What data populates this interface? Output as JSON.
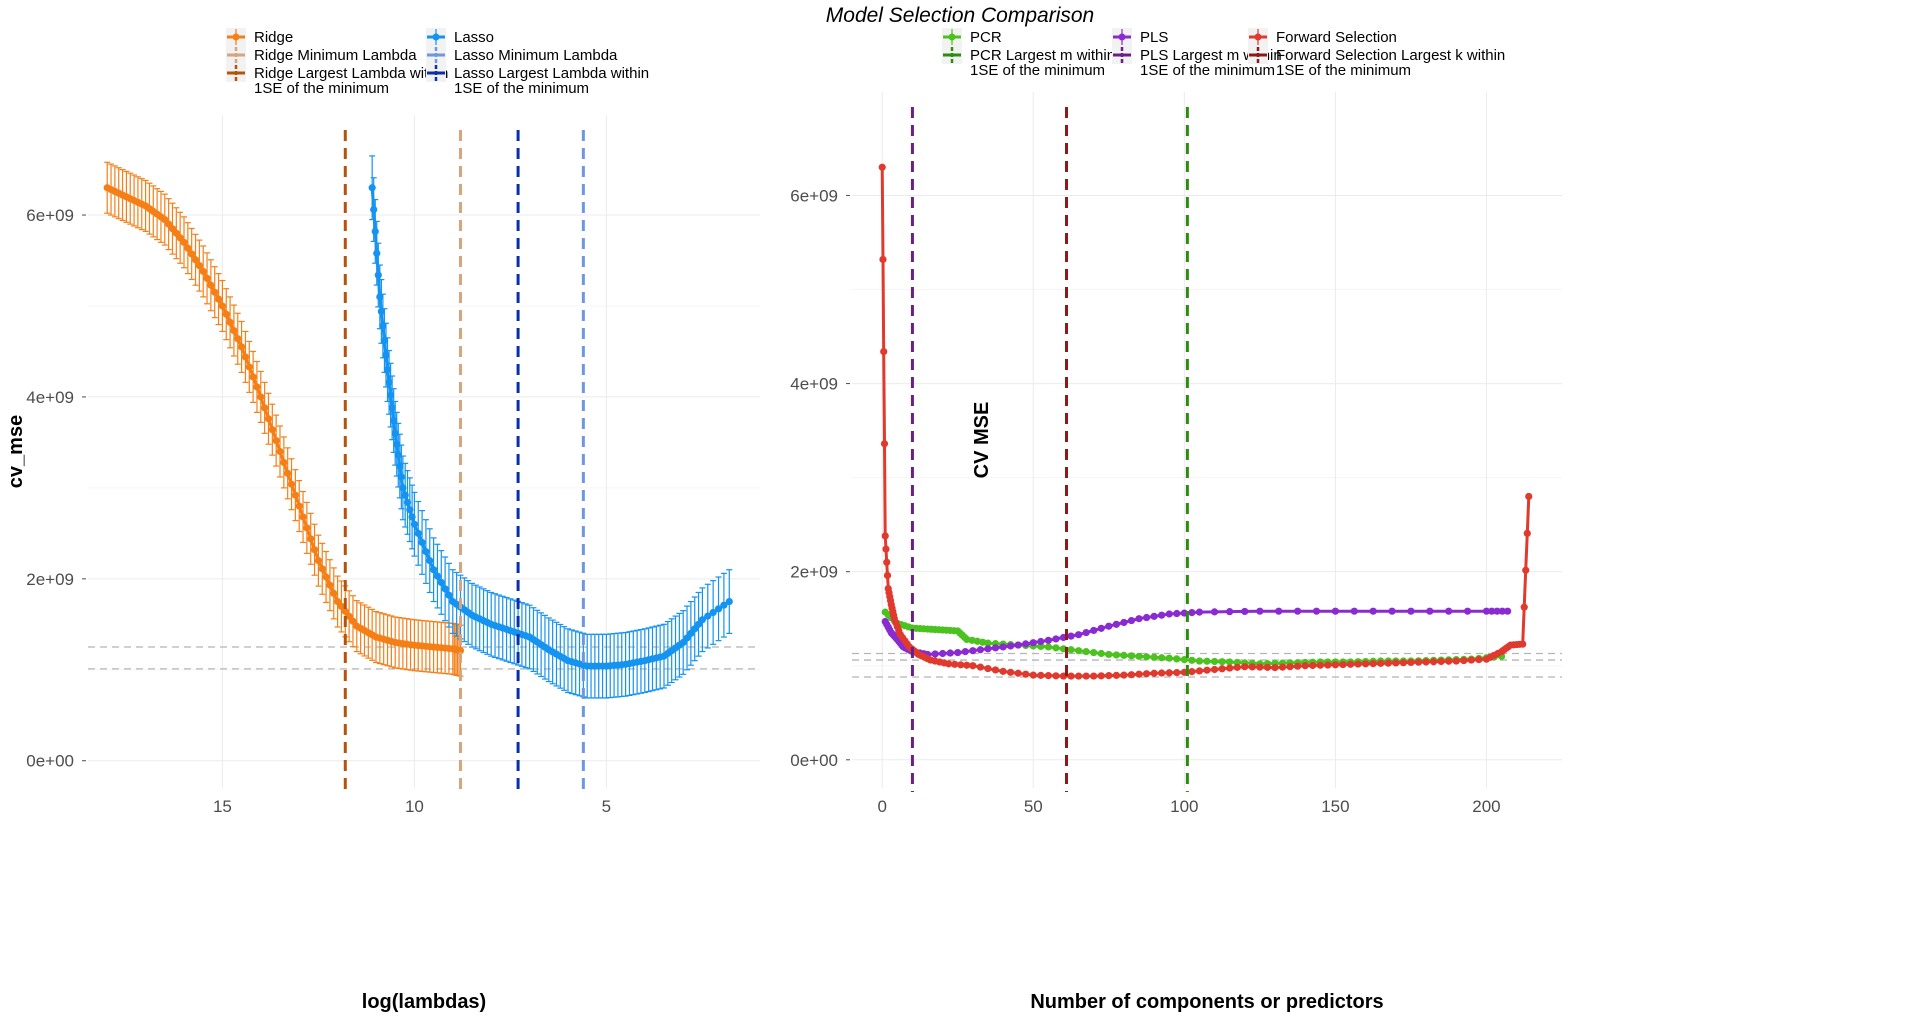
{
  "title": "Model Selection Comparison",
  "chart_data": [
    {
      "type": "line",
      "xlabel": "log(lambdas)",
      "ylabel": "cv_mse",
      "x_reversed": true,
      "xlim": [
        18.5,
        1.0
      ],
      "ylim": [
        -300000000.0,
        7100000000.0
      ],
      "x_ticks": [
        15,
        10,
        5
      ],
      "x_tick_labels": [
        "15",
        "10",
        "5"
      ],
      "y_ticks": [
        0,
        2000000000,
        4000000000,
        6000000000
      ],
      "y_tick_labels": [
        "0e+00",
        "2e+09",
        "4e+09",
        "6e+09"
      ],
      "grid": true,
      "legend_position": "top",
      "legend": [
        {
          "label": "Ridge",
          "kind": "series",
          "color": "#f57f17"
        },
        {
          "label": "Ridge Minimum Lambda",
          "kind": "vline",
          "color": "#d6a47e"
        },
        {
          "label": "Ridge Largest Lambda within\n1SE of the minimum",
          "kind": "vline",
          "color": "#b45309"
        },
        {
          "label": "Lasso",
          "kind": "series",
          "color": "#1493f0"
        },
        {
          "label": "Lasso Minimum Lambda",
          "kind": "vline",
          "color": "#6f97de"
        },
        {
          "label": "Lasso Largest Lambda within\n1SE of the minimum",
          "kind": "vline",
          "color": "#0b2fa8"
        }
      ],
      "series": [
        {
          "name": "Ridge",
          "color": "#f57f17",
          "errorbar_se": 280000000.0,
          "points": [
            [
              18.0,
              6300000000.0
            ],
            [
              17.5,
              6200000000.0
            ],
            [
              17.0,
              6100000000.0
            ],
            [
              16.5,
              5950000000.0
            ],
            [
              16.0,
              5700000000.0
            ],
            [
              15.5,
              5380000000.0
            ],
            [
              15.0,
              5000000000.0
            ],
            [
              14.5,
              4550000000.0
            ],
            [
              14.0,
              4000000000.0
            ],
            [
              13.5,
              3400000000.0
            ],
            [
              13.0,
              2800000000.0
            ],
            [
              12.5,
              2200000000.0
            ],
            [
              12.0,
              1750000000.0
            ],
            [
              11.5,
              1480000000.0
            ],
            [
              11.0,
              1360000000.0
            ],
            [
              10.5,
              1300000000.0
            ],
            [
              10.0,
              1270000000.0
            ],
            [
              9.5,
              1250000000.0
            ],
            [
              9.0,
              1230000000.0
            ],
            [
              8.8,
              1210000000.0
            ]
          ]
        },
        {
          "name": "Lasso",
          "color": "#1493f0",
          "errorbar_se": 350000000.0,
          "points": [
            [
              11.1,
              6300000000.0
            ],
            [
              10.9,
              5100000000.0
            ],
            [
              10.7,
              4300000000.0
            ],
            [
              10.5,
              3600000000.0
            ],
            [
              10.3,
              3000000000.0
            ],
            [
              10.0,
              2600000000.0
            ],
            [
              9.5,
              2100000000.0
            ],
            [
              9.0,
              1750000000.0
            ],
            [
              8.5,
              1600000000.0
            ],
            [
              8.0,
              1500000000.0
            ],
            [
              7.5,
              1430000000.0
            ],
            [
              7.0,
              1360000000.0
            ],
            [
              6.5,
              1220000000.0
            ],
            [
              6.0,
              1100000000.0
            ],
            [
              5.5,
              1040000000.0
            ],
            [
              5.0,
              1040000000.0
            ],
            [
              4.5,
              1060000000.0
            ],
            [
              4.0,
              1100000000.0
            ],
            [
              3.5,
              1150000000.0
            ],
            [
              3.0,
              1300000000.0
            ],
            [
              2.5,
              1550000000.0
            ],
            [
              1.8,
              1750000000.0
            ]
          ]
        }
      ],
      "vlines": [
        {
          "name": "Ridge Largest Lambda within 1SE of the minimum",
          "x": 11.8,
          "color": "#b45309"
        },
        {
          "name": "Ridge Minimum Lambda",
          "x": 8.8,
          "color": "#d6a47e"
        },
        {
          "name": "Lasso Largest Lambda within 1SE of the minimum",
          "x": 7.3,
          "color": "#0b2fa8"
        },
        {
          "name": "Lasso Minimum Lambda",
          "x": 5.6,
          "color": "#6f97de"
        }
      ],
      "hlines": [
        1250000000.0,
        1010000000.0
      ]
    },
    {
      "type": "line",
      "xlabel": "Number of components or predictors",
      "ylabel": "CV MSE",
      "xlim": [
        -10,
        225
      ],
      "ylim": [
        -300000000.0,
        7100000000.0
      ],
      "x_ticks": [
        0,
        50,
        100,
        150,
        200
      ],
      "x_tick_labels": [
        "0",
        "50",
        "100",
        "150",
        "200"
      ],
      "y_ticks": [
        0,
        2000000000,
        4000000000,
        6000000000
      ],
      "y_tick_labels": [
        "0e+00",
        "2e+09",
        "4e+09",
        "6e+09"
      ],
      "grid": true,
      "legend_position": "top",
      "legend": [
        {
          "label": "PCR",
          "kind": "series",
          "color": "#4cc21f"
        },
        {
          "label": "PCR Largest m within\n1SE of the minimum",
          "kind": "vline",
          "color": "#2e8b0f"
        },
        {
          "label": "PLS",
          "kind": "series",
          "color": "#8a2bd2"
        },
        {
          "label": "PLS Largest m within\n1SE of the minimum",
          "kind": "vline",
          "color": "#6a1e8a"
        },
        {
          "label": "Forward Selection",
          "kind": "series",
          "color": "#e03a2e"
        },
        {
          "label": "Forward Selection Largest k within\n1SE of the minimum",
          "kind": "vline",
          "color": "#8b1a1a"
        }
      ],
      "series": [
        {
          "name": "PCR",
          "color": "#4cc21f",
          "points": [
            [
              1,
              1570000000.0
            ],
            [
              5,
              1450000000.0
            ],
            [
              10,
              1400000000.0
            ],
            [
              15,
              1390000000.0
            ],
            [
              20,
              1380000000.0
            ],
            [
              25,
              1370000000.0
            ],
            [
              28,
              1280000000.0
            ],
            [
              35,
              1240000000.0
            ],
            [
              45,
              1220000000.0
            ],
            [
              55,
              1200000000.0
            ],
            [
              65,
              1160000000.0
            ],
            [
              75,
              1120000000.0
            ],
            [
              85,
              1100000000.0
            ],
            [
              95,
              1080000000.0
            ],
            [
              105,
              1050000000.0
            ],
            [
              115,
              1040000000.0
            ],
            [
              125,
              1020000000.0
            ],
            [
              135,
              1030000000.0
            ],
            [
              145,
              1040000000.0
            ],
            [
              155,
              1040000000.0
            ],
            [
              165,
              1050000000.0
            ],
            [
              175,
              1050000000.0
            ],
            [
              185,
              1060000000.0
            ],
            [
              195,
              1070000000.0
            ],
            [
              205,
              1100000000.0
            ]
          ]
        },
        {
          "name": "PLS",
          "color": "#8a2bd2",
          "points": [
            [
              1,
              1470000000.0
            ],
            [
              3,
              1350000000.0
            ],
            [
              5,
              1280000000.0
            ],
            [
              7,
              1200000000.0
            ],
            [
              10,
              1150000000.0
            ],
            [
              15,
              1120000000.0
            ],
            [
              25,
              1140000000.0
            ],
            [
              35,
              1180000000.0
            ],
            [
              45,
              1220000000.0
            ],
            [
              55,
              1270000000.0
            ],
            [
              65,
              1330000000.0
            ],
            [
              75,
              1420000000.0
            ],
            [
              85,
              1500000000.0
            ],
            [
              95,
              1550000000.0
            ],
            [
              105,
              1570000000.0
            ],
            [
              125,
              1580000000.0
            ],
            [
              150,
              1580000000.0
            ],
            [
              175,
              1580000000.0
            ],
            [
              200,
              1580000000.0
            ],
            [
              207,
              1580000000.0
            ]
          ]
        },
        {
          "name": "Forward Selection",
          "color": "#e03a2e",
          "points": [
            [
              0,
              6300000000.0
            ],
            [
              1,
              2380000000.0
            ],
            [
              2,
              1820000000.0
            ],
            [
              3,
              1650000000.0
            ],
            [
              4,
              1500000000.0
            ],
            [
              6,
              1330000000.0
            ],
            [
              9,
              1200000000.0
            ],
            [
              12,
              1120000000.0
            ],
            [
              16,
              1060000000.0
            ],
            [
              22,
              1020000000.0
            ],
            [
              30,
              1000000000.0
            ],
            [
              40,
              940000000.0
            ],
            [
              50,
              900000000.0
            ],
            [
              60,
              890000000.0
            ],
            [
              70,
              890000000.0
            ],
            [
              80,
              900000000.0
            ],
            [
              90,
              920000000.0
            ],
            [
              100,
              930000000.0
            ],
            [
              110,
              960000000.0
            ],
            [
              120,
              990000000.0
            ],
            [
              130,
              980000000.0
            ],
            [
              140,
              1000000000.0
            ],
            [
              150,
              1010000000.0
            ],
            [
              160,
              1020000000.0
            ],
            [
              170,
              1030000000.0
            ],
            [
              180,
              1040000000.0
            ],
            [
              190,
              1050000000.0
            ],
            [
              200,
              1070000000.0
            ],
            [
              205,
              1150000000.0
            ],
            [
              208,
              1220000000.0
            ],
            [
              212,
              1230000000.0
            ],
            [
              214,
              2800000000.0
            ]
          ]
        }
      ],
      "vlines": [
        {
          "name": "PLS Largest m within 1SE of the minimum",
          "x": 10,
          "color": "#6a1e8a"
        },
        {
          "name": "Forward Selection Largest k within 1SE of the minimum",
          "x": 61,
          "color": "#8b1a1a"
        },
        {
          "name": "PCR Largest m within 1SE of the minimum",
          "x": 101,
          "color": "#2e8b0f"
        }
      ],
      "hlines": [
        1130000000.0,
        1060000000.0,
        880000000.0
      ]
    }
  ]
}
